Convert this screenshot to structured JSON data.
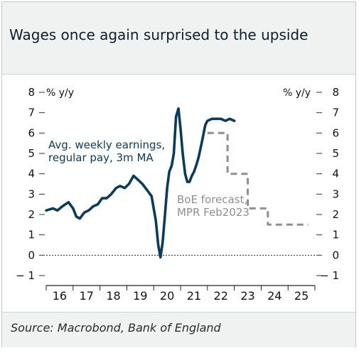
{
  "title": "Wages once again surprised to the upside",
  "source": "Source: Macrobond, Bank of England",
  "chart_data": {
    "type": "line",
    "left_unit": "% y/y",
    "right_unit": "% y/y",
    "ylim": [
      -1,
      8
    ],
    "yticks": [
      -1,
      0,
      1,
      2,
      3,
      4,
      5,
      6,
      7,
      8
    ],
    "ytick_labels": [
      "− 1",
      "0",
      "1",
      "2",
      "3",
      "4",
      "5",
      "6",
      "7",
      "8"
    ],
    "xlim": [
      2016.0,
      2026.0
    ],
    "xtick_labels": [
      "16",
      "17",
      "18",
      "19",
      "20",
      "21",
      "22",
      "23",
      "24",
      "25"
    ],
    "zero_line": "dotted",
    "series": [
      {
        "name": "Avg. weekly earnings, regular pay, 3m MA",
        "color": "#0c3a5a",
        "style": "solid",
        "x": [
          2016.0,
          2016.25,
          2016.42,
          2016.6,
          2016.83,
          2017.0,
          2017.12,
          2017.25,
          2017.42,
          2017.58,
          2017.75,
          2017.92,
          2018.08,
          2018.25,
          2018.42,
          2018.6,
          2018.75,
          2018.92,
          2019.08,
          2019.25,
          2019.42,
          2019.58,
          2019.75,
          2019.92,
          2020.08,
          2020.17,
          2020.25,
          2020.33,
          2020.42,
          2020.5,
          2020.58,
          2020.67,
          2020.75,
          2020.83,
          2020.92,
          2021.0,
          2021.08,
          2021.17,
          2021.25,
          2021.33,
          2021.42,
          2021.5,
          2021.58,
          2021.67,
          2021.75,
          2021.83,
          2021.92,
          2022.0,
          2022.17,
          2022.33,
          2022.5,
          2022.67,
          2022.83,
          2023.0
        ],
        "y": [
          2.2,
          2.3,
          2.2,
          2.4,
          2.6,
          2.3,
          1.9,
          1.8,
          2.1,
          2.2,
          2.4,
          2.5,
          2.8,
          2.8,
          3.0,
          3.3,
          3.4,
          3.3,
          3.5,
          3.9,
          3.7,
          3.5,
          3.2,
          2.9,
          1.7,
          0.5,
          -0.1,
          0.6,
          2.0,
          3.3,
          4.1,
          4.4,
          5.0,
          6.8,
          7.2,
          6.2,
          5.0,
          4.0,
          3.6,
          3.6,
          3.9,
          4.1,
          4.4,
          4.8,
          5.3,
          5.8,
          6.4,
          6.6,
          6.7,
          6.7,
          6.7,
          6.6,
          6.7,
          6.6
        ],
        "annotation": "Avg. weekly earnings, regular pay, 3m MA"
      },
      {
        "name": "BoE forecast, MPR Feb2023",
        "color": "#8f8f8f",
        "style": "dashed-step",
        "x": [
          2022.0,
          2022.75,
          2022.75,
          2023.5,
          2023.5,
          2024.25,
          2024.25,
          2025.0,
          2025.0,
          2025.75
        ],
        "y": [
          6.0,
          6.0,
          4.0,
          4.0,
          2.3,
          2.3,
          1.5,
          1.5,
          1.5,
          1.5
        ],
        "annotation": "BoE forecast, MPR Feb2023"
      }
    ]
  }
}
